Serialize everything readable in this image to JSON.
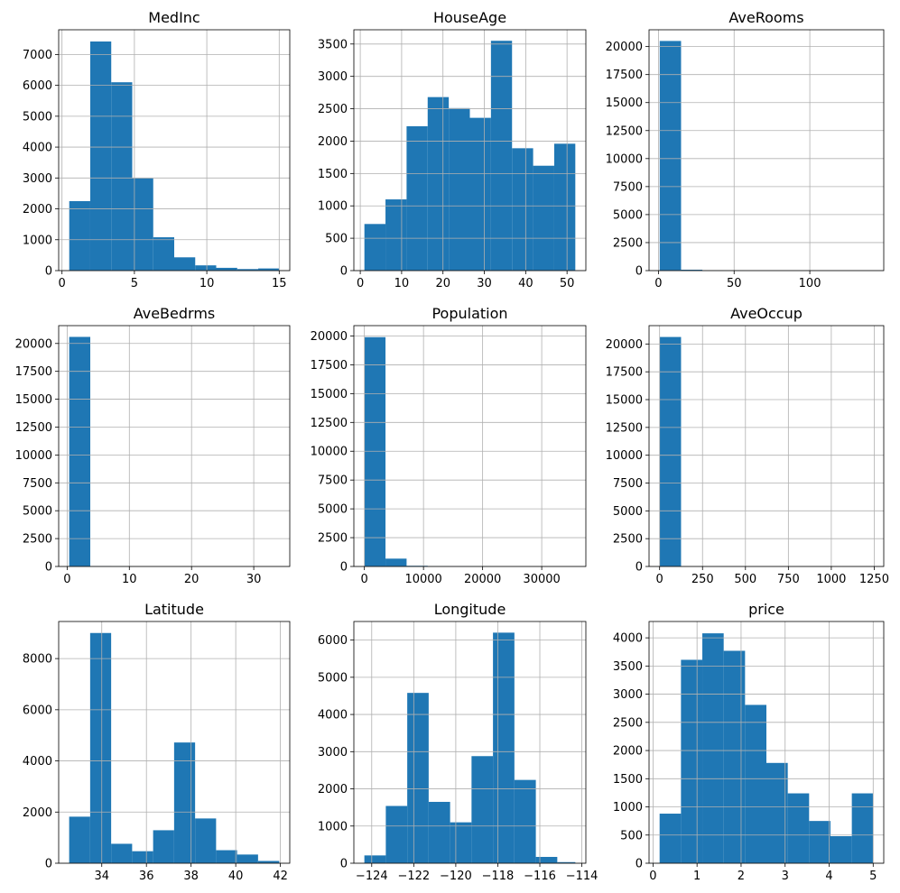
{
  "chart_data": [
    {
      "type": "histogram",
      "title": "MedInc",
      "bin_edges": [
        0.5,
        1.95,
        3.4,
        4.85,
        6.3,
        7.75,
        9.2,
        10.65,
        12.1,
        13.55,
        15.0
      ],
      "counts": [
        2250,
        7420,
        6100,
        2990,
        1080,
        430,
        170,
        90,
        50,
        70
      ],
      "xlim": [
        -0.23,
        15.73
      ],
      "ylim": [
        0,
        7800
      ],
      "xticks": [
        0,
        5,
        10,
        15
      ],
      "xtick_labels": [
        "0",
        "5",
        "10",
        "15"
      ],
      "yticks": [
        0,
        1000,
        2000,
        3000,
        4000,
        5000,
        6000,
        7000
      ],
      "ytick_labels": [
        "0",
        "1000",
        "2000",
        "3000",
        "4000",
        "5000",
        "6000",
        "7000"
      ]
    },
    {
      "type": "histogram",
      "title": "HouseAge",
      "bin_edges": [
        1,
        6.1,
        11.2,
        16.3,
        21.4,
        26.5,
        31.6,
        36.7,
        41.8,
        46.9,
        52
      ],
      "counts": [
        720,
        1100,
        2230,
        2680,
        2510,
        2360,
        3550,
        1890,
        1620,
        1960
      ],
      "xlim": [
        -1.55,
        54.55
      ],
      "ylim": [
        0,
        3720
      ],
      "xticks": [
        0,
        10,
        20,
        30,
        40,
        50
      ],
      "xtick_labels": [
        "0",
        "10",
        "20",
        "30",
        "40",
        "50"
      ],
      "yticks": [
        0,
        500,
        1000,
        1500,
        2000,
        2500,
        3000,
        3500
      ],
      "ytick_labels": [
        "0",
        "500",
        "1000",
        "1500",
        "2000",
        "2500",
        "3000",
        "3500"
      ]
    },
    {
      "type": "histogram",
      "title": "AveRooms",
      "bin_edges": [
        0.85,
        14.95,
        29.04,
        43.14,
        57.23,
        71.33,
        85.42,
        99.52,
        113.61,
        127.71,
        141.8
      ],
      "counts": [
        20500,
        80,
        15,
        4,
        3,
        2,
        1,
        1,
        1,
        1
      ],
      "xlim": [
        -6.2,
        148.85
      ],
      "ylim": [
        0,
        21500
      ],
      "xticks": [
        0,
        50,
        100
      ],
      "xtick_labels": [
        "0",
        "50",
        "100"
      ],
      "yticks": [
        0,
        2500,
        5000,
        7500,
        10000,
        12500,
        15000,
        17500,
        20000
      ],
      "ytick_labels": [
        "0",
        "2500",
        "5000",
        "7500",
        "10000",
        "12500",
        "15000",
        "17500",
        "20000"
      ]
    },
    {
      "type": "histogram",
      "title": "AveBedrms",
      "bin_edges": [
        0.33,
        3.72,
        7.1,
        10.49,
        13.87,
        17.26,
        20.64,
        24.03,
        27.41,
        30.8,
        34.1
      ],
      "counts": [
        20590,
        40,
        5,
        2,
        1,
        1,
        1,
        1,
        1,
        1
      ],
      "xlim": [
        -1.36,
        35.79
      ],
      "ylim": [
        0,
        21600
      ],
      "xticks": [
        0,
        10,
        20,
        30
      ],
      "xtick_labels": [
        "0",
        "10",
        "20",
        "30"
      ],
      "yticks": [
        0,
        2500,
        5000,
        7500,
        10000,
        12500,
        15000,
        17500,
        20000
      ],
      "ytick_labels": [
        "0",
        "2500",
        "5000",
        "7500",
        "10000",
        "12500",
        "15000",
        "17500",
        "20000"
      ]
    },
    {
      "type": "histogram",
      "title": "Population",
      "bin_edges": [
        3,
        3571,
        7139,
        10707,
        14275,
        17843,
        21411,
        24979,
        28547,
        32115,
        35682
      ],
      "counts": [
        19900,
        680,
        60,
        20,
        8,
        4,
        2,
        1,
        1,
        1
      ],
      "xlim": [
        -1781,
        37466
      ],
      "ylim": [
        0,
        20900
      ],
      "xticks": [
        0,
        10000,
        20000,
        30000
      ],
      "xtick_labels": [
        "0",
        "10000",
        "20000",
        "30000"
      ],
      "yticks": [
        0,
        2500,
        5000,
        7500,
        10000,
        12500,
        15000,
        17500,
        20000
      ],
      "ytick_labels": [
        "0",
        "2500",
        "5000",
        "7500",
        "10000",
        "12500",
        "15000",
        "17500",
        "20000"
      ]
    },
    {
      "type": "histogram",
      "title": "AveOccup",
      "bin_edges": [
        0.69,
        124.95,
        249.22,
        373.48,
        497.74,
        622.0,
        746.27,
        870.53,
        994.79,
        1119.06,
        1243.33
      ],
      "counts": [
        20630,
        3,
        1,
        1,
        1,
        1,
        1,
        1,
        1,
        1
      ],
      "xlim": [
        -61.44,
        1305.46
      ],
      "ylim": [
        0,
        21650
      ],
      "xticks": [
        0,
        250,
        500,
        750,
        1000,
        1250
      ],
      "xtick_labels": [
        "0",
        "250",
        "500",
        "750",
        "1000",
        "1250"
      ],
      "yticks": [
        0,
        2500,
        5000,
        7500,
        10000,
        12500,
        15000,
        17500,
        20000
      ],
      "ytick_labels": [
        "0",
        "2500",
        "5000",
        "7500",
        "10000",
        "12500",
        "15000",
        "17500",
        "20000"
      ]
    },
    {
      "type": "histogram",
      "title": "Latitude",
      "bin_edges": [
        32.54,
        33.48,
        34.42,
        35.36,
        36.3,
        37.24,
        38.18,
        39.12,
        40.06,
        41.0,
        41.95
      ],
      "counts": [
        1820,
        9000,
        760,
        470,
        1290,
        4720,
        1750,
        510,
        340,
        90
      ],
      "xlim": [
        32.07,
        42.42
      ],
      "ylim": [
        0,
        9450
      ],
      "xticks": [
        34,
        36,
        38,
        40,
        42
      ],
      "xtick_labels": [
        "34",
        "36",
        "38",
        "40",
        "42"
      ],
      "yticks": [
        0,
        2000,
        4000,
        6000,
        8000
      ],
      "ytick_labels": [
        "0",
        "2000",
        "4000",
        "6000",
        "8000"
      ]
    },
    {
      "type": "histogram",
      "title": "Longitude",
      "bin_edges": [
        -124.35,
        -123.33,
        -122.31,
        -121.29,
        -120.27,
        -119.25,
        -118.23,
        -117.21,
        -116.19,
        -115.17,
        -114.31
      ],
      "counts": [
        210,
        1540,
        4580,
        1650,
        1100,
        2880,
        6200,
        2240,
        170,
        30
      ],
      "xlim": [
        -124.85,
        -113.81
      ],
      "ylim": [
        0,
        6500
      ],
      "xticks": [
        -124,
        -122,
        -120,
        -118,
        -116,
        -114
      ],
      "xtick_labels": [
        "−124",
        "−122",
        "−120",
        "−118",
        "−116",
        "−114"
      ],
      "yticks": [
        0,
        1000,
        2000,
        3000,
        4000,
        5000,
        6000
      ],
      "ytick_labels": [
        "0",
        "1000",
        "2000",
        "3000",
        "4000",
        "5000",
        "6000"
      ]
    },
    {
      "type": "histogram",
      "title": "price",
      "bin_edges": [
        0.15,
        0.635,
        1.12,
        1.605,
        2.09,
        2.575,
        3.06,
        3.545,
        4.03,
        4.515,
        5.0
      ],
      "counts": [
        880,
        3610,
        4080,
        3770,
        2810,
        1780,
        1240,
        750,
        480,
        1240
      ],
      "xlim": [
        -0.09,
        5.24
      ],
      "ylim": [
        0,
        4290
      ],
      "xticks": [
        0,
        1,
        2,
        3,
        4,
        5
      ],
      "xtick_labels": [
        "0",
        "1",
        "2",
        "3",
        "4",
        "5"
      ],
      "yticks": [
        0,
        500,
        1000,
        1500,
        2000,
        2500,
        3000,
        3500,
        4000
      ],
      "ytick_labels": [
        "0",
        "500",
        "1000",
        "1500",
        "2000",
        "2500",
        "3000",
        "3500",
        "4000"
      ]
    }
  ]
}
